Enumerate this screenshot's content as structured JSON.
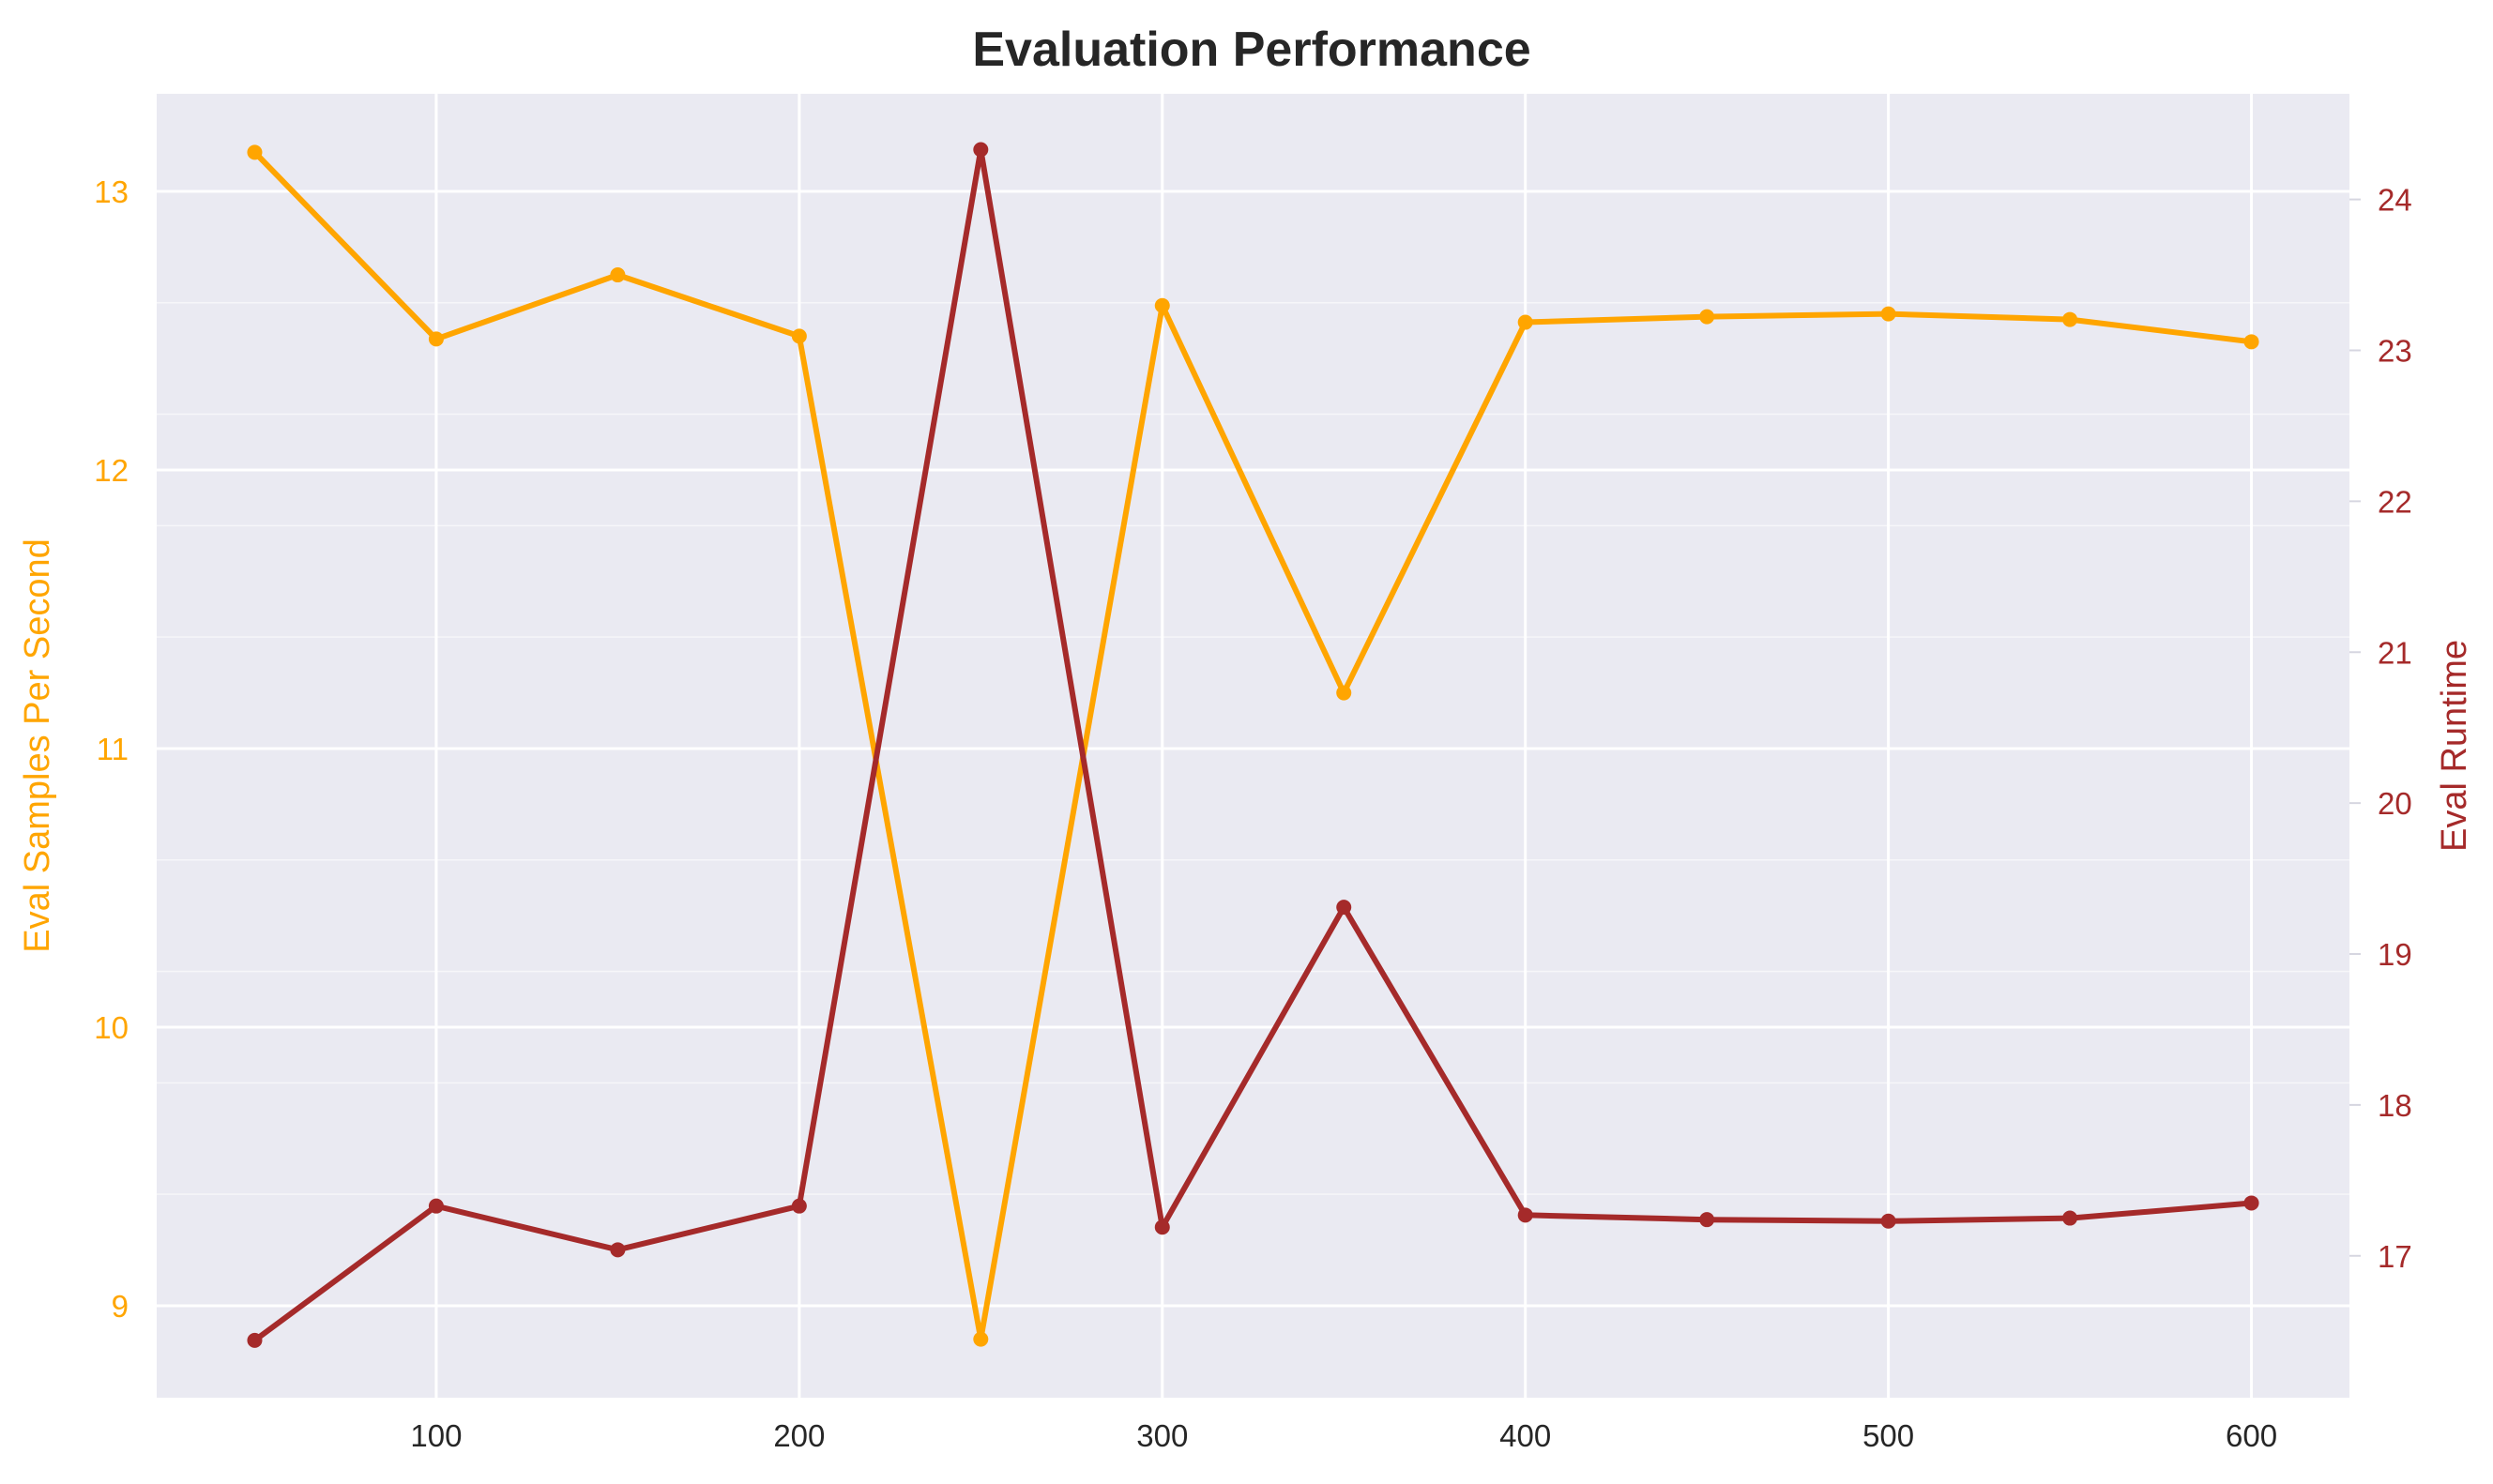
{
  "chart_data": {
    "type": "line",
    "title": "Evaluation Performance",
    "xlabel": "",
    "x": [
      50,
      100,
      150,
      200,
      250,
      300,
      350,
      400,
      450,
      500,
      550,
      600
    ],
    "xlim": [
      23,
      627
    ],
    "xticks": [
      100,
      200,
      300,
      400,
      500,
      600
    ],
    "grid": true,
    "legend": "none",
    "background": "#eaeaf2",
    "gridColor": "#ffffff",
    "series": [
      {
        "name": "",
        "axis": "left",
        "color": "#ffa500",
        "values": [
          13.14,
          12.47,
          12.7,
          12.48,
          8.88,
          12.59,
          11.2,
          12.53,
          12.55,
          12.56,
          12.54,
          12.46
        ]
      },
      {
        "name": "",
        "axis": "right",
        "color": "#a52a2a",
        "values": [
          16.44,
          17.33,
          17.04,
          17.33,
          24.33,
          17.19,
          19.31,
          17.27,
          17.24,
          17.23,
          17.25,
          17.35
        ]
      }
    ],
    "y_left": {
      "label": "Eval Samples Per Second",
      "color": "#ffa500",
      "ylim": [
        8.67,
        13.35
      ],
      "ticks": [
        9,
        10,
        11,
        12,
        13
      ],
      "minor_ticks": [
        9.4,
        9.8,
        10.2,
        10.6,
        11.4,
        11.8,
        12.2,
        12.6,
        13.0
      ]
    },
    "y_right": {
      "label": "Eval Runtime",
      "color": "#a52a2a",
      "ylim": [
        16.06,
        24.7
      ],
      "ticks": [
        17,
        18,
        19,
        20,
        21,
        22,
        23,
        24
      ]
    }
  }
}
